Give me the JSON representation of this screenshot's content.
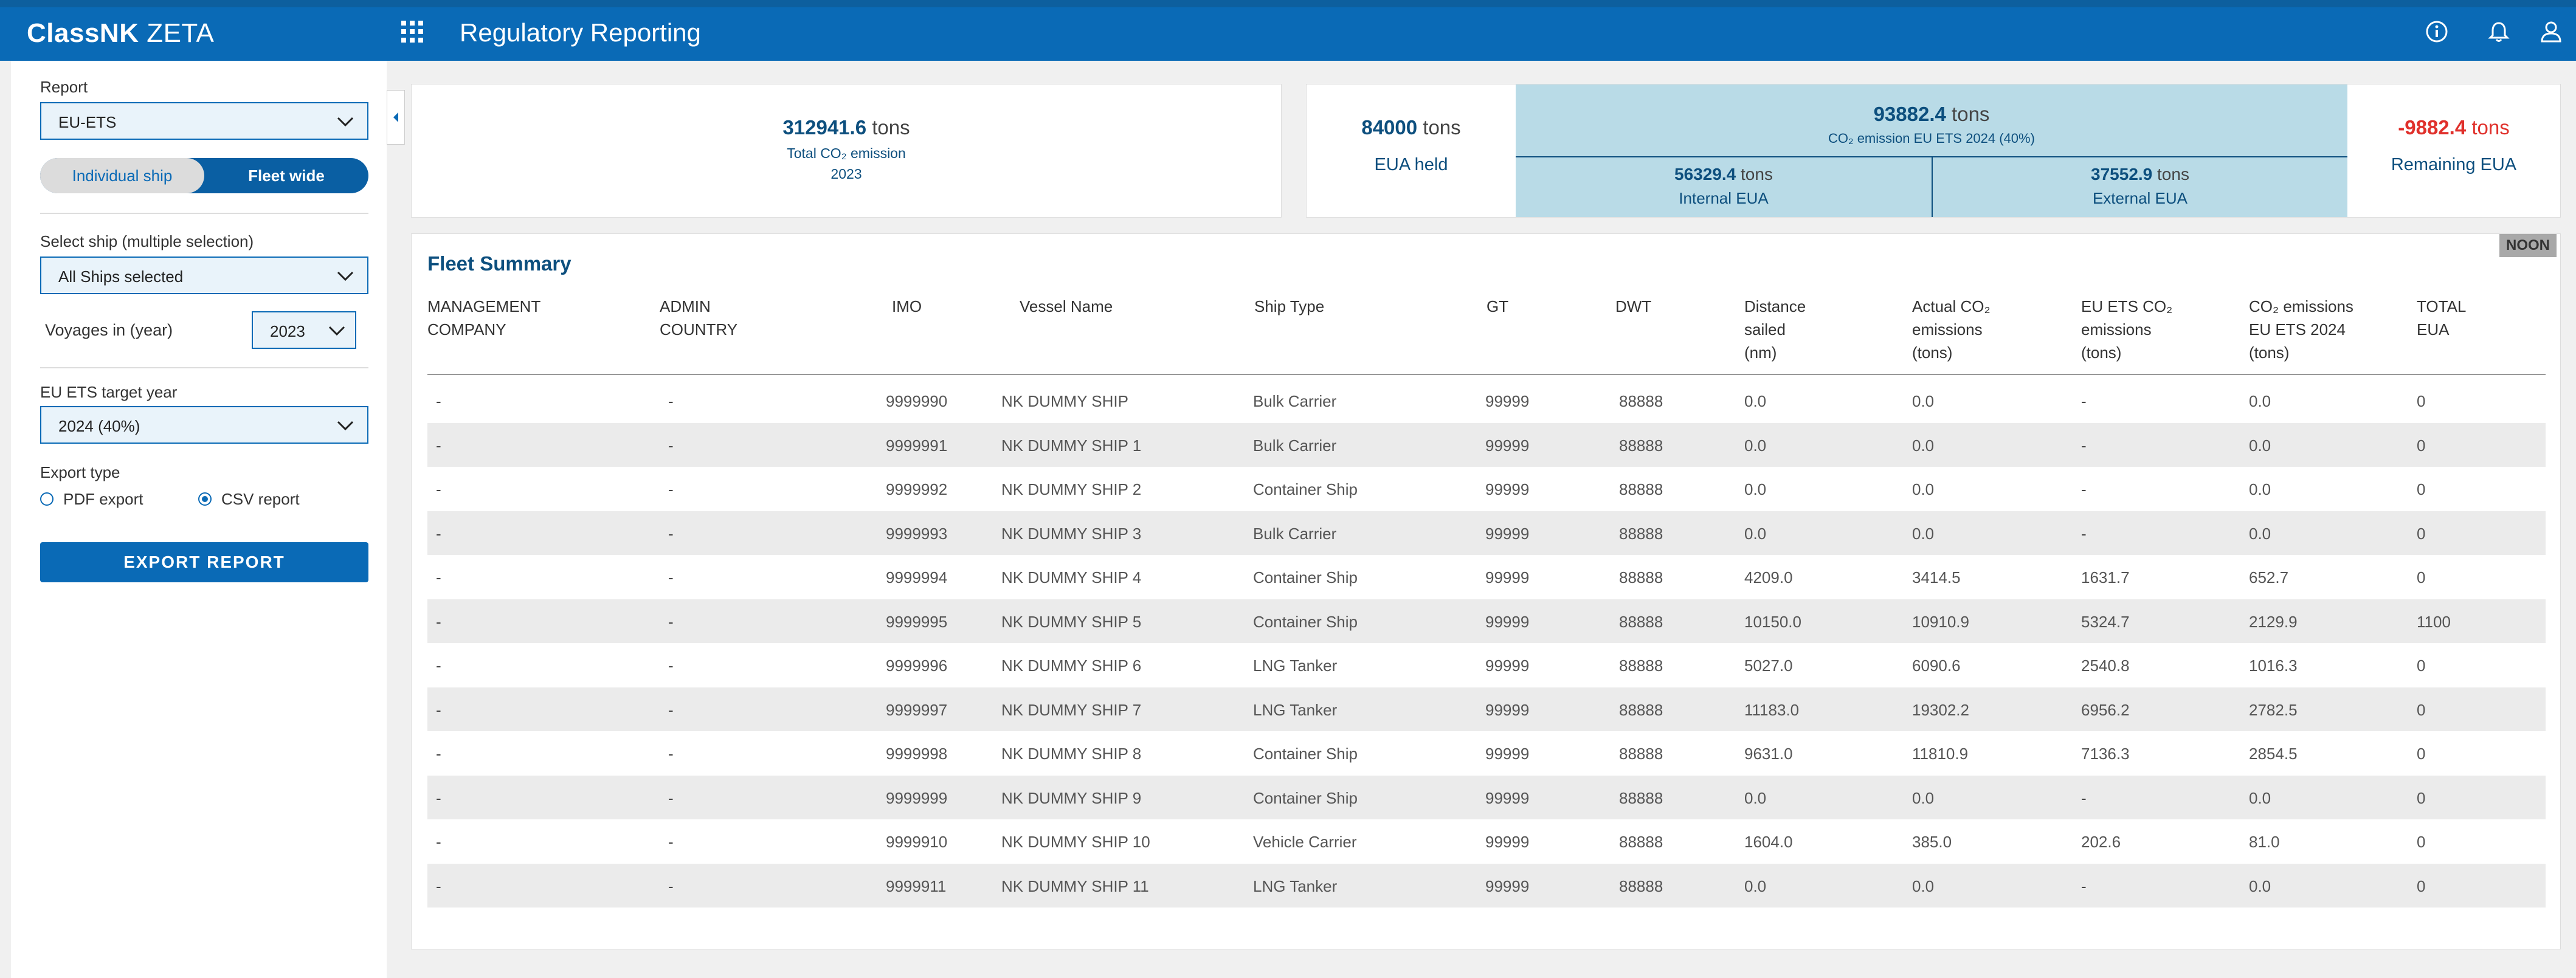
{
  "header": {
    "brand_bold": "ClassNK",
    "brand_light": "ZETA",
    "app_title": "Regulatory Reporting"
  },
  "icons": [
    "apps-grid-icon",
    "info-icon",
    "bell-icon",
    "user-icon",
    "chevron-down-icon",
    "chevron-left-icon"
  ],
  "sidebar": {
    "report_label": "Report",
    "report_value": "EU-ETS",
    "toggle": {
      "individual": "Individual ship",
      "fleet": "Fleet wide",
      "selected": "Fleet wide"
    },
    "select_ship_label": "Select ship (multiple selection)",
    "select_ship_value": "All Ships selected",
    "voyages_label": "Voyages in (year)",
    "voyages_value": "2023",
    "target_year_label": "EU ETS target year",
    "target_year_value": "2024 (40%)",
    "export_type_label": "Export type",
    "pdf_label": "PDF export",
    "csv_label": "CSV report",
    "export_type_selected": "CSV report",
    "export_button": "EXPORT REPORT"
  },
  "summary": {
    "total_emission": {
      "value": "312941.6",
      "unit": "tons",
      "label": "Total CO₂ emission",
      "year": "2023"
    },
    "eua_held": {
      "value": "84000",
      "unit": "tons",
      "label": "EUA held"
    },
    "eu_ets_emission": {
      "value": "93882.4",
      "unit": "tons",
      "label": "CO₂ emission EU ETS 2024 (40%)"
    },
    "internal_eua": {
      "value": "56329.4",
      "unit": "tons",
      "label": "Internal EUA"
    },
    "external_eua": {
      "value": "37552.9",
      "unit": "tons",
      "label": "External EUA"
    },
    "remaining_eua": {
      "value": "-9882.4",
      "unit": "tons",
      "label": "Remaining EUA"
    }
  },
  "fleet": {
    "title": "Fleet Summary",
    "badge": "NOON",
    "columns": [
      [
        "MANAGEMENT",
        "COMPANY"
      ],
      [
        "ADMIN",
        "COUNTRY"
      ],
      [
        "IMO"
      ],
      [
        "Vessel Name"
      ],
      [
        "Ship Type"
      ],
      [
        "GT"
      ],
      [
        "DWT"
      ],
      [
        "Distance",
        "sailed",
        "(nm)"
      ],
      [
        "Actual CO₂",
        "emissions",
        "(tons)"
      ],
      [
        "EU ETS CO₂",
        "emissions",
        "(tons)"
      ],
      [
        "CO₂ emissions",
        "EU ETS 2024",
        "(tons)"
      ],
      [
        "TOTAL",
        "EUA"
      ]
    ],
    "rows": [
      [
        "-",
        "-",
        "9999990",
        "NK DUMMY SHIP",
        "Bulk Carrier",
        "99999",
        "88888",
        "0.0",
        "0.0",
        "-",
        "0.0",
        "0"
      ],
      [
        "-",
        "-",
        "9999991",
        "NK DUMMY SHIP 1",
        "Bulk Carrier",
        "99999",
        "88888",
        "0.0",
        "0.0",
        "-",
        "0.0",
        "0"
      ],
      [
        "-",
        "-",
        "9999992",
        "NK DUMMY SHIP 2",
        "Container Ship",
        "99999",
        "88888",
        "0.0",
        "0.0",
        "-",
        "0.0",
        "0"
      ],
      [
        "-",
        "-",
        "9999993",
        "NK DUMMY SHIP 3",
        "Bulk Carrier",
        "99999",
        "88888",
        "0.0",
        "0.0",
        "-",
        "0.0",
        "0"
      ],
      [
        "-",
        "-",
        "9999994",
        "NK DUMMY SHIP 4",
        "Container Ship",
        "99999",
        "88888",
        "4209.0",
        "3414.5",
        "1631.7",
        "652.7",
        "0"
      ],
      [
        "-",
        "-",
        "9999995",
        "NK DUMMY SHIP 5",
        "Container Ship",
        "99999",
        "88888",
        "10150.0",
        "10910.9",
        "5324.7",
        "2129.9",
        "1100"
      ],
      [
        "-",
        "-",
        "9999996",
        "NK DUMMY SHIP 6",
        "LNG Tanker",
        "99999",
        "88888",
        "5027.0",
        "6090.6",
        "2540.8",
        "1016.3",
        "0"
      ],
      [
        "-",
        "-",
        "9999997",
        "NK DUMMY SHIP 7",
        "LNG Tanker",
        "99999",
        "88888",
        "11183.0",
        "19302.2",
        "6956.2",
        "2782.5",
        "0"
      ],
      [
        "-",
        "-",
        "9999998",
        "NK DUMMY SHIP 8",
        "Container Ship",
        "99999",
        "88888",
        "9631.0",
        "11810.9",
        "7136.3",
        "2854.5",
        "0"
      ],
      [
        "-",
        "-",
        "9999999",
        "NK DUMMY SHIP 9",
        "Container Ship",
        "99999",
        "88888",
        "0.0",
        "0.0",
        "-",
        "0.0",
        "0"
      ],
      [
        "-",
        "-",
        "9999910",
        "NK DUMMY SHIP 10",
        "Vehicle Carrier",
        "99999",
        "88888",
        "1604.0",
        "385.0",
        "202.6",
        "81.0",
        "0"
      ],
      [
        "-",
        "-",
        "9999911",
        "NK DUMMY SHIP 11",
        "LNG Tanker",
        "99999",
        "88888",
        "0.0",
        "0.0",
        "-",
        "0.0",
        "0"
      ]
    ]
  }
}
